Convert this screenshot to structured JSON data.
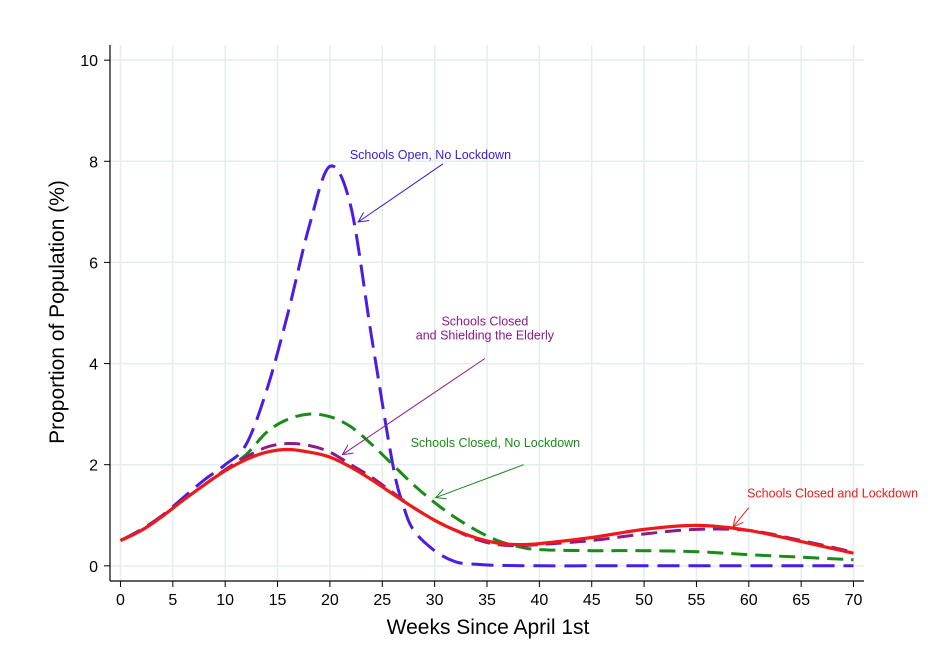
{
  "chart_data": {
    "type": "line",
    "xlabel": "Weeks Since April 1st",
    "ylabel": "Proportion of Population (%)",
    "xlim": [
      -1,
      71
    ],
    "ylim": [
      -0.3,
      10.3
    ],
    "xticks": [
      "0",
      "5",
      "10",
      "15",
      "20",
      "25",
      "30",
      "35",
      "40",
      "45",
      "50",
      "55",
      "60",
      "65",
      "70"
    ],
    "yticks": [
      "0",
      "2",
      "4",
      "6",
      "8",
      "10"
    ],
    "grid": true,
    "legend": "none (annotations with arrows)",
    "series": [
      {
        "label": "Schools Open, No Lockdown",
        "color": "#4b1ce6",
        "dash": "long-dash",
        "x": [
          0,
          2,
          4,
          6,
          8,
          10,
          12,
          14,
          16,
          18,
          20,
          22,
          24,
          26,
          27,
          28,
          30,
          32,
          34,
          36,
          40,
          45,
          50,
          55,
          60,
          65,
          70
        ],
        "y": [
          0.5,
          0.72,
          1.0,
          1.35,
          1.7,
          2.0,
          2.4,
          3.5,
          5.0,
          6.7,
          7.9,
          7.1,
          4.5,
          2.0,
          1.2,
          0.7,
          0.3,
          0.08,
          0.03,
          0.01,
          0,
          0,
          0,
          0,
          0,
          0,
          0
        ]
      },
      {
        "label": "Schools Closed, No Lockdown",
        "color": "#1a8a1a",
        "dash": "dash",
        "x": [
          0,
          2,
          4,
          6,
          8,
          10,
          12,
          14,
          16,
          18,
          20,
          22,
          24,
          26,
          28,
          30,
          32,
          34,
          36,
          38,
          40,
          45,
          50,
          55,
          60,
          65,
          70
        ],
        "y": [
          0.5,
          0.7,
          0.98,
          1.3,
          1.6,
          1.9,
          2.2,
          2.65,
          2.9,
          3.0,
          2.95,
          2.75,
          2.4,
          2.0,
          1.6,
          1.25,
          0.95,
          0.7,
          0.5,
          0.38,
          0.32,
          0.3,
          0.3,
          0.28,
          0.22,
          0.17,
          0.12
        ]
      },
      {
        "label": "Schools Closed and Shielding the Elderly",
        "color": "#8b1a8b",
        "dash": "dash",
        "x": [
          0,
          2,
          4,
          6,
          8,
          10,
          12,
          14,
          16,
          18,
          20,
          22,
          24,
          26,
          28,
          30,
          32,
          34,
          36,
          38,
          40,
          45,
          50,
          55,
          60,
          65,
          70
        ],
        "y": [
          0.5,
          0.7,
          0.98,
          1.3,
          1.6,
          1.9,
          2.15,
          2.35,
          2.42,
          2.38,
          2.25,
          2.0,
          1.75,
          1.45,
          1.15,
          0.9,
          0.7,
          0.52,
          0.42,
          0.4,
          0.42,
          0.5,
          0.63,
          0.72,
          0.7,
          0.5,
          0.27
        ]
      },
      {
        "label": "Schools Closed and Lockdown",
        "color": "#ee1a1a",
        "dash": "solid",
        "x": [
          0,
          2,
          4,
          6,
          8,
          10,
          12,
          14,
          16,
          18,
          20,
          22,
          24,
          26,
          28,
          30,
          32,
          34,
          36,
          38,
          40,
          45,
          50,
          55,
          60,
          65,
          70
        ],
        "y": [
          0.5,
          0.7,
          0.98,
          1.3,
          1.6,
          1.88,
          2.1,
          2.25,
          2.3,
          2.25,
          2.15,
          1.95,
          1.7,
          1.42,
          1.15,
          0.9,
          0.7,
          0.55,
          0.45,
          0.42,
          0.44,
          0.56,
          0.72,
          0.8,
          0.7,
          0.48,
          0.25
        ]
      }
    ],
    "annotations": [
      {
        "text": [
          "Schools Open, No Lockdown"
        ],
        "color": "#3b1ad6",
        "text_x": 29.6,
        "text_y": 8.05,
        "arrow_from": [
          30.8,
          7.95
        ],
        "arrow_to": [
          22.7,
          6.8
        ]
      },
      {
        "text": [
          "Schools Closed",
          "and Shielding the Elderly"
        ],
        "color": "#8b1a8b",
        "text_x": 34.8,
        "text_y": 4.75,
        "arrow_from": [
          34.8,
          4.1
        ],
        "arrow_to": [
          21.2,
          2.2
        ]
      },
      {
        "text": [
          "Schools Closed, No Lockdown"
        ],
        "color": "#1a8a1a",
        "text_x": 35.8,
        "text_y": 2.35,
        "arrow_from": [
          38.5,
          2.0
        ],
        "arrow_to": [
          30.1,
          1.35
        ]
      },
      {
        "text": [
          "Schools Closed and Lockdown"
        ],
        "color": "#ee1a1a",
        "text_x": 68.0,
        "text_y": 1.35,
        "arrow_from": [
          60.0,
          1.15
        ],
        "arrow_to": [
          58.5,
          0.77
        ]
      }
    ]
  }
}
